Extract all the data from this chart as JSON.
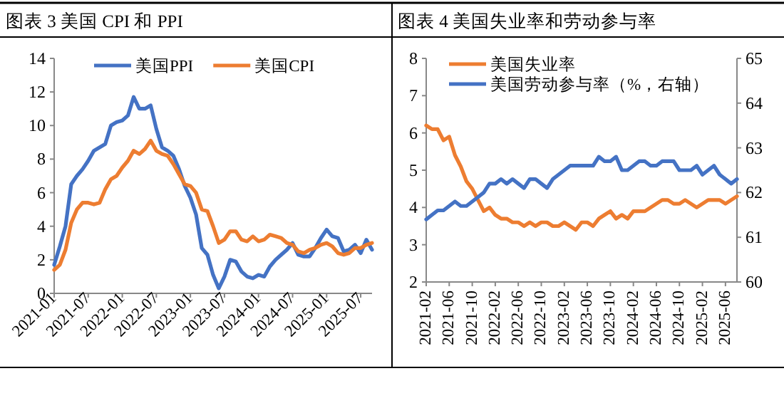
{
  "chart_data": [
    {
      "type": "line",
      "title": "图表 3  美国 CPI 和 PPI",
      "legend": "top",
      "grid": false,
      "categories": [
        "2021-01",
        null,
        null,
        null,
        null,
        null,
        "2021-07",
        null,
        null,
        null,
        null,
        null,
        "2022-01",
        null,
        null,
        null,
        null,
        null,
        "2022-07",
        null,
        null,
        null,
        null,
        null,
        "2023-01",
        null,
        null,
        null,
        null,
        null,
        "2023-07",
        null,
        null,
        null,
        null,
        null,
        "2024-01",
        null,
        null,
        null,
        null,
        null,
        "2024-07",
        null,
        null,
        null,
        null,
        null,
        "2025-01",
        null,
        null,
        null,
        null,
        null,
        "2025-07",
        null,
        null
      ],
      "ylim": [
        0,
        14
      ],
      "yticks": [
        0,
        2,
        4,
        6,
        8,
        10,
        12,
        14
      ],
      "series": [
        {
          "name": "美国PPI",
          "color": "#4472c4",
          "values": [
            1.7,
            2.8,
            4.0,
            6.5,
            7.0,
            7.4,
            7.9,
            8.5,
            8.7,
            8.9,
            10.0,
            10.2,
            10.3,
            10.6,
            11.7,
            11.0,
            11.0,
            11.2,
            9.8,
            8.7,
            8.5,
            8.2,
            7.4,
            6.4,
            5.7,
            4.7,
            2.7,
            2.3,
            1.1,
            0.3,
            1.0,
            2.0,
            1.9,
            1.3,
            1.0,
            0.9,
            1.1,
            1.0,
            1.6,
            2.0,
            2.3,
            2.6,
            3.0,
            2.3,
            2.2,
            2.2,
            2.7,
            3.3,
            3.8,
            3.4,
            3.3,
            2.5,
            2.6,
            2.9,
            2.4,
            3.2,
            2.6
          ]
        },
        {
          "name": "美国CPI",
          "color": "#ed7d31",
          "values": [
            1.4,
            1.7,
            2.6,
            4.2,
            5.0,
            5.4,
            5.4,
            5.3,
            5.4,
            6.2,
            6.8,
            7.0,
            7.5,
            7.9,
            8.5,
            8.3,
            8.6,
            9.1,
            8.5,
            8.3,
            8.2,
            7.7,
            7.1,
            6.5,
            6.4,
            6.0,
            5.0,
            4.9,
            4.0,
            3.0,
            3.2,
            3.7,
            3.7,
            3.2,
            3.1,
            3.4,
            3.1,
            3.2,
            3.5,
            3.4,
            3.3,
            3.0,
            2.9,
            2.5,
            2.4,
            2.6,
            2.7,
            2.9,
            3.0,
            2.8,
            2.4,
            2.3,
            2.4,
            2.7,
            2.7,
            2.9,
            3.0
          ]
        }
      ]
    },
    {
      "type": "line",
      "title": "图表 4  美国失业率和劳动参与率",
      "legend": "top",
      "grid": false,
      "categories": [
        "2021-02",
        null,
        null,
        null,
        "2021-06",
        null,
        null,
        null,
        "2021-10",
        null,
        null,
        null,
        "2022-02",
        null,
        null,
        null,
        "2022-06",
        null,
        null,
        null,
        "2022-10",
        null,
        null,
        null,
        "2023-02",
        null,
        null,
        null,
        "2023-06",
        null,
        null,
        null,
        "2023-10",
        null,
        null,
        null,
        "2024-02",
        null,
        null,
        null,
        "2024-06",
        null,
        null,
        null,
        "2024-10",
        null,
        null,
        null,
        "2025-02",
        null,
        null,
        null,
        "2025-06",
        null,
        null
      ],
      "ylim": [
        2,
        8
      ],
      "yticks": [
        2,
        3,
        4,
        5,
        6,
        7,
        8
      ],
      "y2lim": [
        60,
        65
      ],
      "y2ticks": [
        60,
        61,
        62,
        63,
        64,
        65
      ],
      "series": [
        {
          "name": "美国失业率",
          "color": "#ed7d31",
          "values": [
            6.2,
            6.1,
            6.1,
            5.8,
            5.9,
            5.4,
            5.1,
            4.7,
            4.5,
            4.2,
            3.9,
            4.0,
            3.8,
            3.7,
            3.7,
            3.6,
            3.6,
            3.5,
            3.6,
            3.5,
            3.6,
            3.6,
            3.5,
            3.5,
            3.6,
            3.5,
            3.4,
            3.6,
            3.6,
            3.5,
            3.7,
            3.8,
            3.9,
            3.7,
            3.8,
            3.7,
            3.9,
            3.9,
            3.9,
            4.0,
            4.1,
            4.2,
            4.2,
            4.1,
            4.1,
            4.2,
            4.1,
            4.0,
            4.1,
            4.2,
            4.2,
            4.2,
            4.1,
            4.2,
            4.3
          ]
        },
        {
          "name": "美国劳动参与率（%，右轴）",
          "color": "#4472c4",
          "axis": "y2",
          "values": [
            61.4,
            61.5,
            61.6,
            61.6,
            61.7,
            61.8,
            61.7,
            61.7,
            61.8,
            61.9,
            62.0,
            62.2,
            62.2,
            62.3,
            62.2,
            62.3,
            62.2,
            62.1,
            62.3,
            62.3,
            62.2,
            62.1,
            62.3,
            62.4,
            62.5,
            62.6,
            62.6,
            62.6,
            62.6,
            62.6,
            62.8,
            62.7,
            62.7,
            62.8,
            62.5,
            62.5,
            62.6,
            62.7,
            62.7,
            62.6,
            62.6,
            62.7,
            62.7,
            62.7,
            62.5,
            62.5,
            62.5,
            62.6,
            62.4,
            62.5,
            62.6,
            62.4,
            62.3,
            62.2,
            62.3
          ]
        }
      ]
    }
  ]
}
